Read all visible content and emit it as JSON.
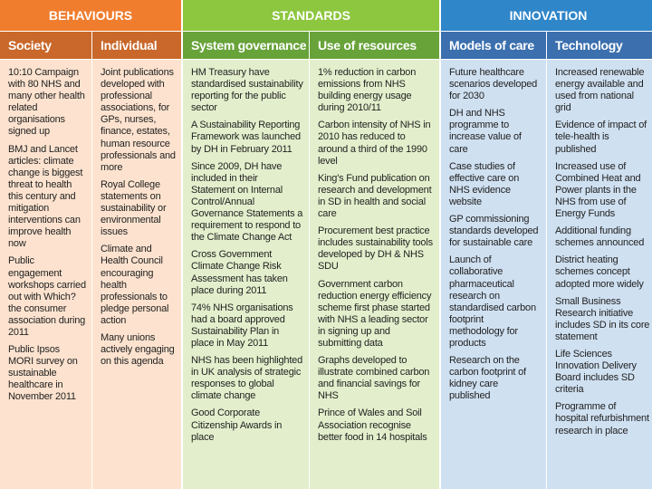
{
  "groups": [
    {
      "title": "BEHAVIOURS",
      "columns": [
        {
          "heading": "Society",
          "items": [
            "10:10 Campaign with 80 NHS and many other health related organisations signed up",
            "BMJ and Lancet articles: climate change is biggest threat to health this century and mitigation interventions can improve health now",
            "Public engagement workshops carried out with Which? the consumer association during 2011",
            "Public Ipsos MORI survey on sustainable healthcare in November 2011"
          ]
        },
        {
          "heading": "Individual",
          "items": [
            "Joint publications developed with professional associations, for GPs, nurses, finance, estates, human resource professionals and more",
            "Royal College statements on sustainability or environmental issues",
            "Climate and Health Council encouraging health professionals to pledge personal action",
            "Many unions actively engaging on this agenda"
          ]
        }
      ]
    },
    {
      "title": "STANDARDS",
      "columns": [
        {
          "heading": "System governance",
          "items": [
            "HM Treasury have standardised sustainability reporting for the public sector",
            "A Sustainability Reporting Framework was launched by DH in February 2011",
            "Since 2009, DH have included in their Statement on Internal Control/Annual Governance Statements a requirement to respond to the Climate Change Act",
            "Cross Government Climate Change Risk Assessment has taken place during 2011",
            "74% NHS organisations had a board approved Sustainability Plan in place in May 2011",
            "NHS has been highlighted in UK analysis of strategic responses to global climate change",
            "Good Corporate Citizenship Awards in place"
          ]
        },
        {
          "heading": "Use of resources",
          "items": [
            "1% reduction in carbon emissions from NHS building energy usage during 2010/11",
            "Carbon intensity of NHS in 2010 has reduced to around a third of the 1990 level",
            "King's Fund publication on research and development in SD in health and social care",
            "Procurement best practice includes sustainability tools developed by DH & NHS SDU",
            "Government carbon reduction energy efficiency scheme first phase started with NHS a leading sector in signing up and submitting data",
            "Graphs developed to illustrate combined carbon and financial savings for NHS",
            "Prince of Wales and Soil Association recognise better food in 14 hospitals"
          ]
        }
      ]
    },
    {
      "title": "INNOVATION",
      "columns": [
        {
          "heading": "Models of care",
          "items": [
            "Future healthcare scenarios developed for 2030",
            "DH and NHS programme to increase value of care",
            "Case studies of effective care on NHS evidence website",
            "GP commissioning standards developed for sustainable care",
            "Launch of collaborative pharmaceutical research on standardised carbon footprint methodology for products",
            "Research on the carbon footprint of kidney care published"
          ]
        },
        {
          "heading": "Technology",
          "items": [
            "Increased renewable energy available and used from national grid",
            "Evidence of impact of tele-health is published",
            "Increased use of Combined Heat and Power plants in the NHS from use of Energy Funds",
            "Additional funding schemes announced",
            "District heating schemes concept adopted more widely",
            "Small Business Research initiative includes SD in its core statement",
            "Life Sciences Innovation Delivery Board includes SD criteria",
            "Programme of hospital refurbishment research in place"
          ]
        }
      ]
    }
  ]
}
